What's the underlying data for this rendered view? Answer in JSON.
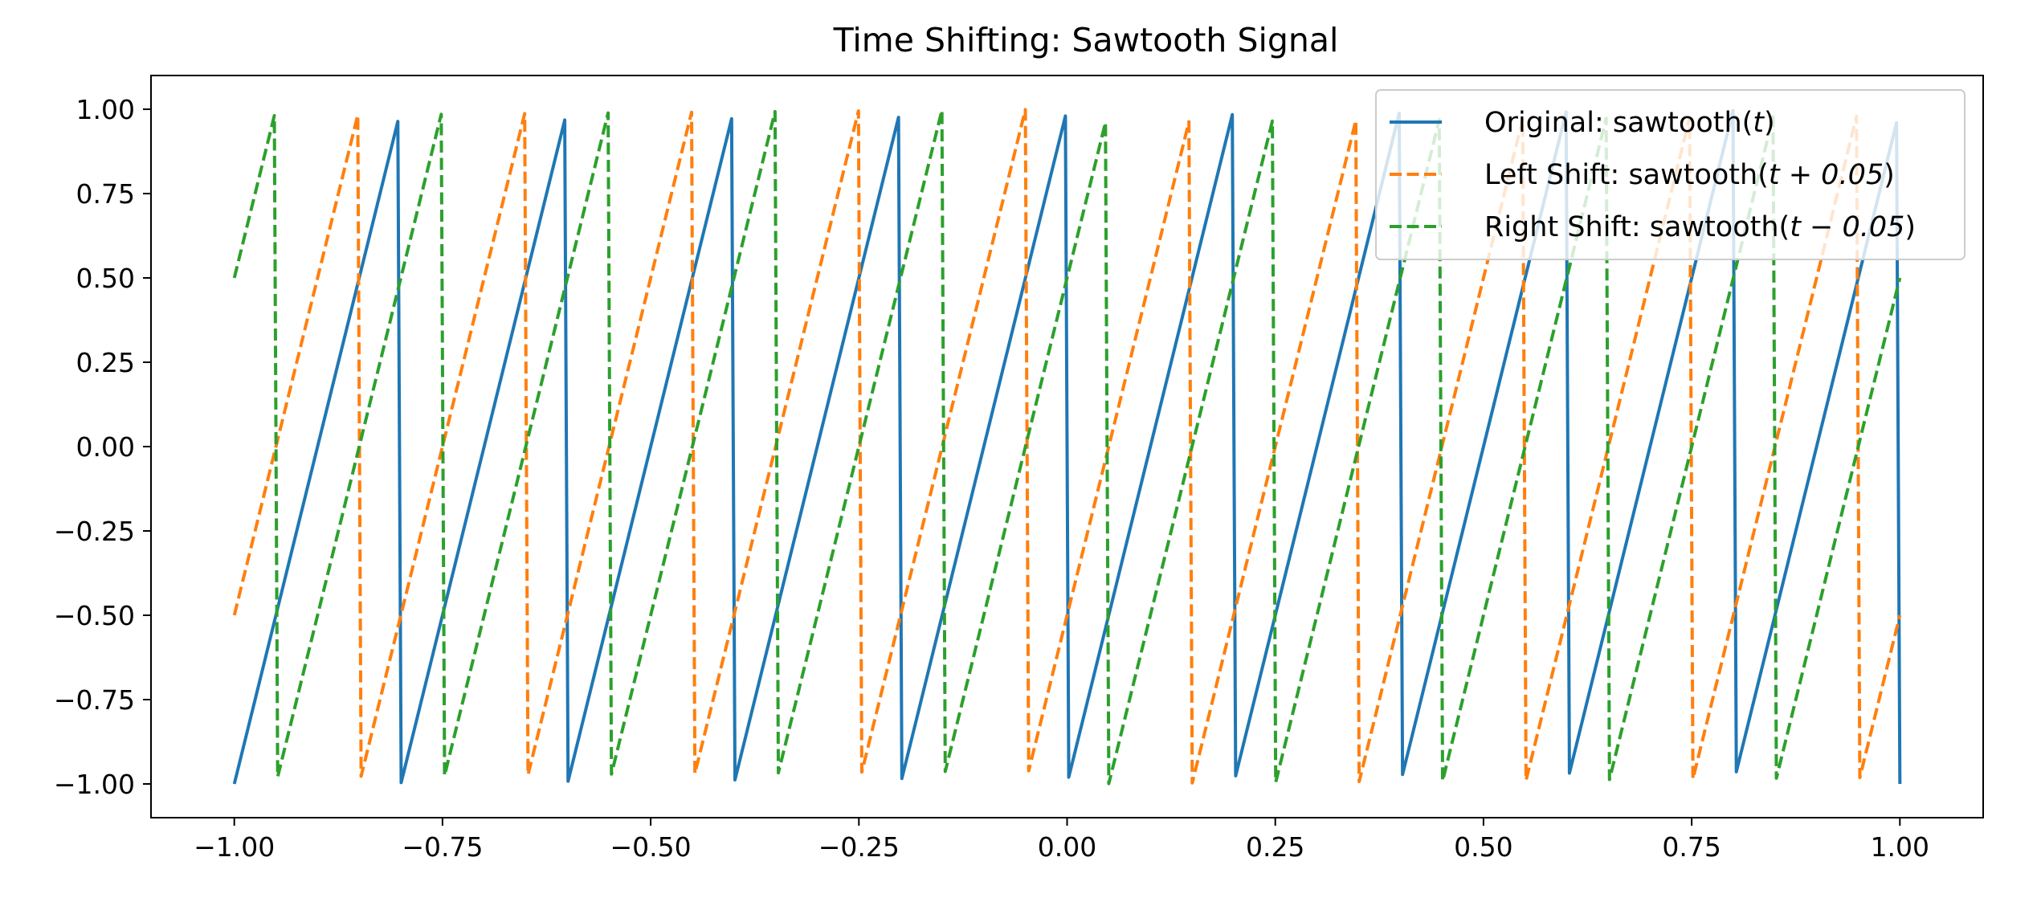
{
  "chart_data": {
    "type": "line",
    "title": "Time Shifting: Sawtooth Signal",
    "xlabel": "",
    "ylabel": "",
    "xlim": [
      -1.1,
      1.1
    ],
    "ylim": [
      -1.1,
      1.1
    ],
    "x_ticks": [
      -1.0,
      -0.75,
      -0.5,
      -0.25,
      0.0,
      0.25,
      0.5,
      0.75,
      1.0
    ],
    "x_tick_labels": [
      "−1.00",
      "−0.75",
      "−0.50",
      "−0.25",
      "0.00",
      "0.25",
      "0.50",
      "0.75",
      "1.00"
    ],
    "y_ticks": [
      1.0,
      0.75,
      0.5,
      0.25,
      0.0,
      -0.25,
      -0.5,
      -0.75,
      -1.0
    ],
    "y_tick_labels": [
      "1.00",
      "0.75",
      "0.50",
      "0.25",
      "0.00",
      "−0.25",
      "−0.50",
      "−0.75",
      "−1.00"
    ],
    "grid": false,
    "legend_position": "top-right",
    "sampling": {
      "t_start": -1.0,
      "t_end": 1.0,
      "points": 500,
      "period": 0.2
    },
    "series": [
      {
        "name": "Original: sawtooth(t)",
        "legend_prefix": "Original: sawtooth(",
        "legend_math": "t",
        "legend_suffix": ")",
        "shift": 0.0,
        "color": "#1f77b4",
        "dash": "solid"
      },
      {
        "name": "Left Shift: sawtooth(t + 0.05)",
        "legend_prefix": "Left Shift: sawtooth(",
        "legend_math": "t + 0.05",
        "legend_suffix": ")",
        "shift": 0.05,
        "color": "#ff7f0e",
        "dash": "dashed"
      },
      {
        "name": "Right Shift: sawtooth(t − 0.05)",
        "legend_prefix": "Right Shift: sawtooth(",
        "legend_math": "t − 0.05",
        "legend_suffix": ")",
        "shift": -0.05,
        "color": "#2ca02c",
        "dash": "dashed"
      }
    ]
  }
}
